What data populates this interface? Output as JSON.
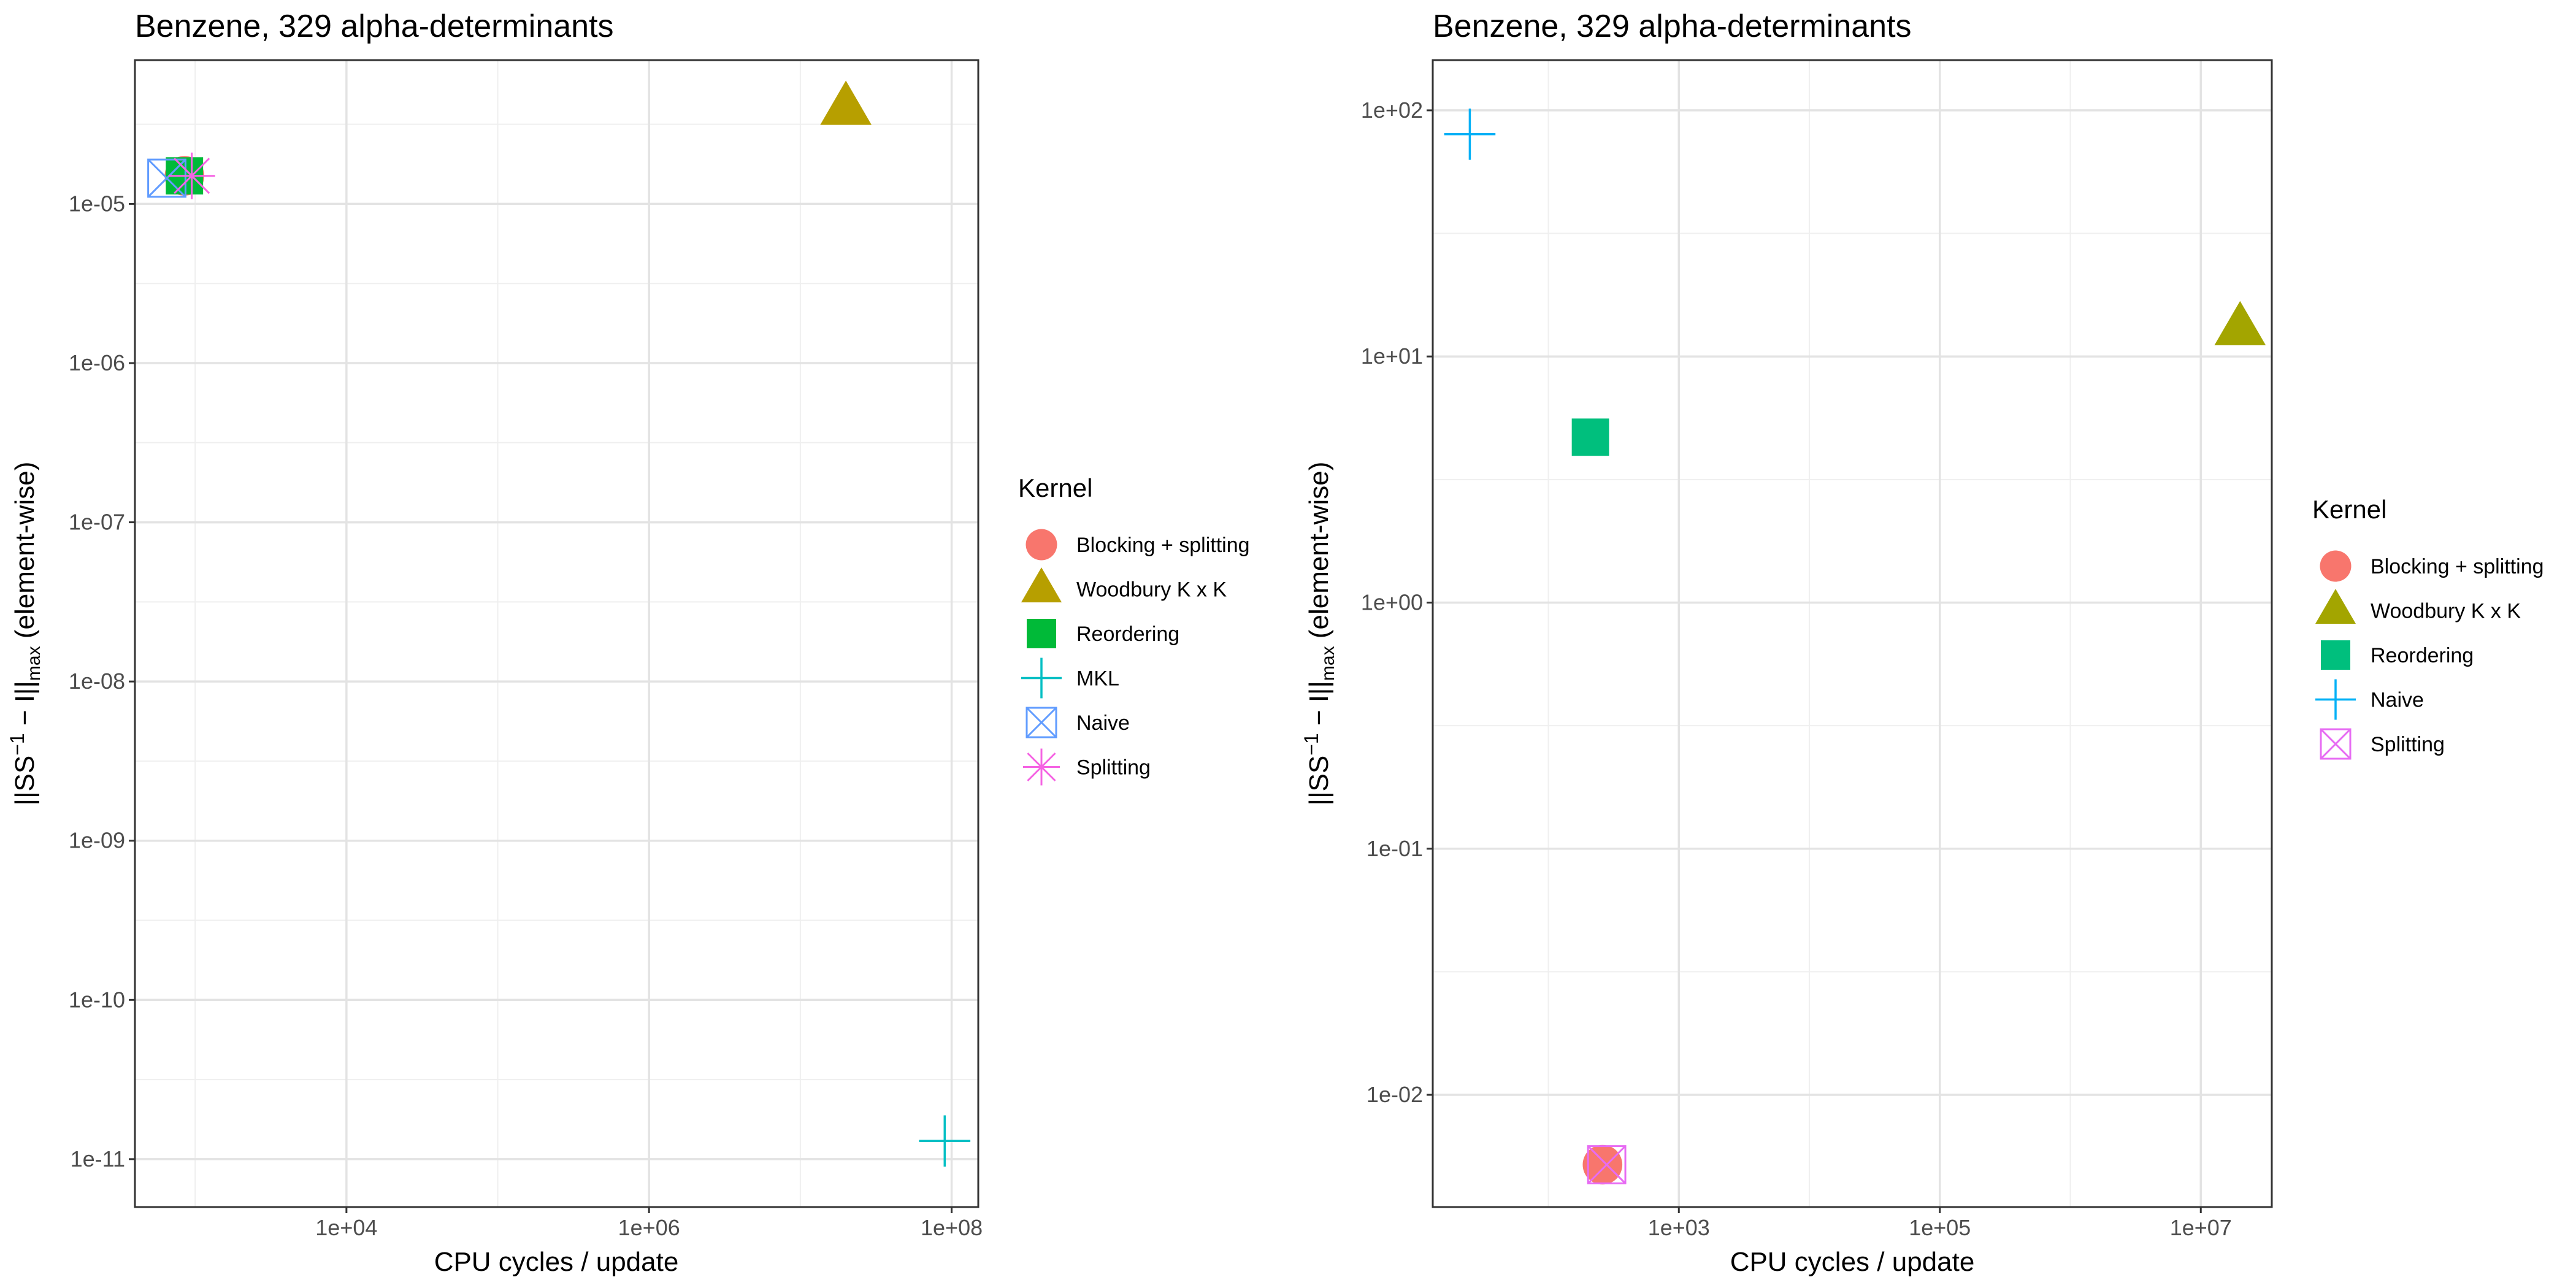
{
  "chart_data": [
    {
      "type": "scatter",
      "title": "Benzene, 329 alpha-determinants",
      "xlabel": "CPU cycles / update",
      "ylabel_parts": [
        "||SS",
        "−1",
        " − I||",
        "max",
        " (element-wise)"
      ],
      "x_scale": "log10",
      "y_scale": "log10",
      "xlim": [
        400,
        150000000
      ],
      "ylim": [
        5e-12,
        8e-05
      ],
      "x_ticks": [
        10000,
        1000000,
        100000000
      ],
      "x_tick_labels": [
        "1e+04",
        "1e+06",
        "1e+08"
      ],
      "y_ticks": [
        1e-11,
        1e-10,
        1e-09,
        1e-08,
        1e-07,
        1e-06,
        1e-05
      ],
      "y_tick_labels": [
        "1e-11",
        "1e-10",
        "1e-09",
        "1e-08",
        "1e-07",
        "1e-06",
        "1e-05"
      ],
      "grid": true,
      "legend_title": "Kernel",
      "legend_position": "right",
      "series": [
        {
          "name": "Blocking + splitting",
          "shape": "circle",
          "color": "#F8766D",
          "x": 850,
          "y": 1.5e-05
        },
        {
          "name": "Woodbury K x K",
          "shape": "triangle",
          "color": "#B79F00",
          "x": 20000000,
          "y": 4e-05
        },
        {
          "name": "Reordering",
          "shape": "square",
          "color": "#00BA38",
          "x": 850,
          "y": 1.5e-05
        },
        {
          "name": "MKL",
          "shape": "plus",
          "color": "#00BFC4",
          "x": 90000000,
          "y": 1.3e-11
        },
        {
          "name": "Naive",
          "shape": "boxcross",
          "color": "#619CFF",
          "x": 650,
          "y": 1.45e-05
        },
        {
          "name": "Splitting",
          "shape": "asterisk",
          "color": "#F564E3",
          "x": 950,
          "y": 1.5e-05
        }
      ]
    },
    {
      "type": "scatter",
      "title": "Benzene, 329 alpha-determinants",
      "xlabel": "CPU cycles / update",
      "ylabel_parts": [
        "||SS",
        "−1",
        " − I||",
        "max",
        " (element-wise)"
      ],
      "x_scale": "log10",
      "y_scale": "log10",
      "xlim": [
        13,
        35000000
      ],
      "ylim": [
        0.0035,
        160
      ],
      "x_ticks": [
        1000,
        100000,
        10000000
      ],
      "x_tick_labels": [
        "1e+03",
        "1e+05",
        "1e+07"
      ],
      "y_ticks": [
        0.01,
        0.1,
        1,
        10,
        100
      ],
      "y_tick_labels": [
        "1e-02",
        "1e-01",
        "1e+00",
        "1e+01",
        "1e+02"
      ],
      "grid": true,
      "legend_title": "Kernel",
      "legend_position": "right",
      "series": [
        {
          "name": "Blocking + splitting",
          "shape": "circle",
          "color": "#F8766D",
          "x": 260,
          "y": 0.0052
        },
        {
          "name": "Woodbury K x K",
          "shape": "triangle",
          "color": "#A3A500",
          "x": 20000000,
          "y": 13
        },
        {
          "name": "Reordering",
          "shape": "square",
          "color": "#00BF7D",
          "x": 210,
          "y": 4.7
        },
        {
          "name": "Naive",
          "shape": "plus",
          "color": "#00B0F6",
          "x": 25,
          "y": 80
        },
        {
          "name": "Splitting",
          "shape": "boxcross",
          "color": "#E76BF3",
          "x": 280,
          "y": 0.0052
        }
      ]
    }
  ]
}
